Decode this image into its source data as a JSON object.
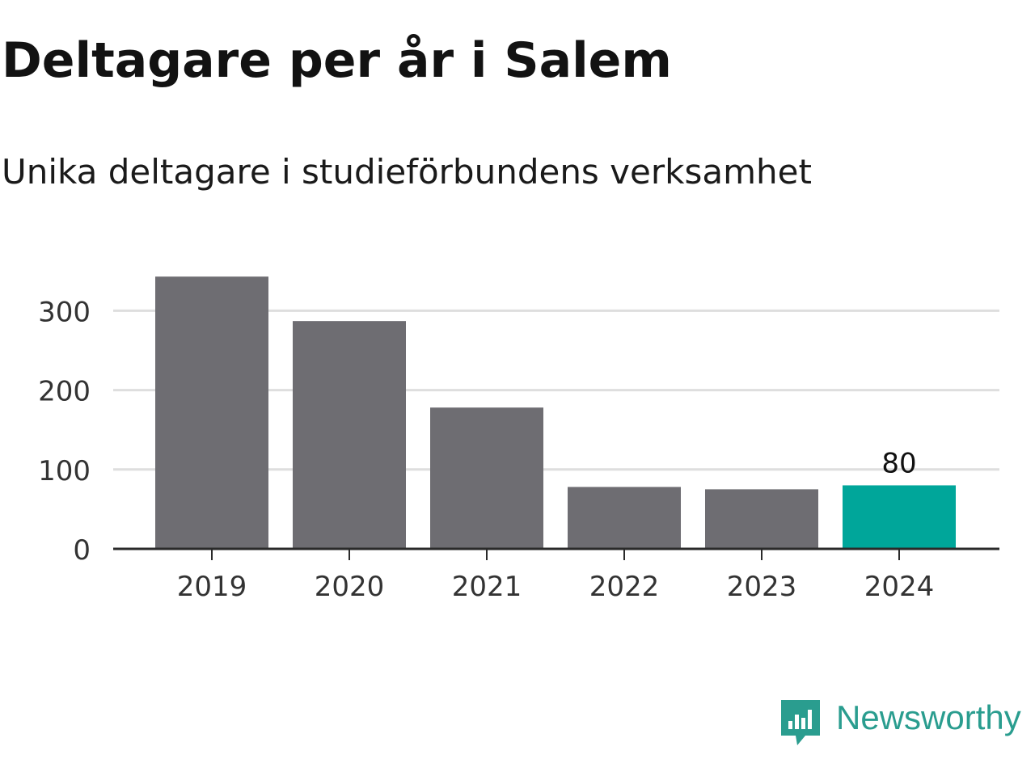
{
  "chart_data": {
    "type": "bar",
    "title": "Deltagare per år i Salem",
    "subtitle": "Unika deltagare i studieförbundens verksamhet",
    "categories": [
      "2019",
      "2020",
      "2021",
      "2022",
      "2023",
      "2024"
    ],
    "values": [
      343,
      287,
      178,
      78,
      75,
      80
    ],
    "ylim": [
      0,
      350
    ],
    "yticks": [
      0,
      100,
      200,
      300
    ],
    "xlabel": "",
    "ylabel": "",
    "grid": true,
    "highlight_index": 5,
    "data_labels": [
      {
        "index": 5,
        "text": "80"
      }
    ],
    "colors": {
      "bar": "#6e6d72",
      "highlight": "#00a69a",
      "grid": "#dedede",
      "axis": "#2a2a2a"
    }
  },
  "brand": {
    "name": "Newsworthy",
    "color": "#2a9d8f",
    "icon": "bar-chart-speech-bubble-icon"
  }
}
